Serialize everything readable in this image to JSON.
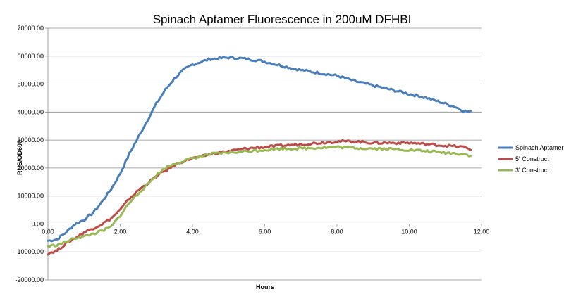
{
  "chart_data": {
    "type": "line",
    "title": "Spinach Aptamer Fluorescence in 200uM DFHBI",
    "xlabel": "Hours",
    "ylabel": "RUS/OD600",
    "xlim": [
      0,
      12
    ],
    "ylim": [
      -20000,
      70000
    ],
    "x_ticks": [
      "0.00",
      "2.00",
      "4.00",
      "6.00",
      "8.00",
      "10.00",
      "12.00"
    ],
    "y_ticks": [
      "-20000.00",
      "-10000.00",
      "0.00",
      "10000.00",
      "20000.00",
      "30000.00",
      "40000.00",
      "50000.00",
      "60000.00",
      "70000.00"
    ],
    "grid": "horizontal",
    "legend_position": "right",
    "series": [
      {
        "name": "Spinach Aptamer",
        "color": "#4a7ebb",
        "x": [
          0.0,
          0.25,
          0.5,
          0.75,
          1.0,
          1.25,
          1.5,
          1.75,
          2.0,
          2.25,
          2.5,
          2.75,
          3.0,
          3.25,
          3.5,
          3.75,
          4.0,
          4.25,
          4.5,
          4.75,
          5.0,
          5.25,
          5.5,
          5.75,
          6.0,
          6.5,
          7.0,
          7.5,
          8.0,
          8.5,
          9.0,
          9.5,
          10.0,
          10.5,
          11.0,
          11.25,
          11.5,
          11.7
        ],
        "y": [
          -6000,
          -5500,
          -3000,
          0,
          1500,
          4000,
          8000,
          12500,
          18000,
          25000,
          31000,
          37000,
          43000,
          48000,
          52000,
          55000,
          57000,
          58000,
          59000,
          59200,
          59500,
          59300,
          59000,
          58600,
          58000,
          56500,
          55000,
          54000,
          53000,
          51000,
          49500,
          48000,
          46500,
          45000,
          43000,
          42000,
          40500,
          40000
        ]
      },
      {
        "name": "5' Construct",
        "color": "#be4b48",
        "x": [
          0.0,
          0.25,
          0.5,
          0.75,
          1.0,
          1.25,
          1.5,
          1.75,
          2.0,
          2.25,
          2.5,
          2.75,
          3.0,
          3.25,
          3.5,
          3.75,
          4.0,
          4.25,
          4.5,
          4.75,
          5.0,
          5.5,
          6.0,
          6.5,
          7.0,
          7.5,
          8.0,
          8.5,
          9.0,
          9.5,
          10.0,
          10.5,
          11.0,
          11.5,
          11.7
        ],
        "y": [
          -10500,
          -9500,
          -7000,
          -5000,
          -3000,
          -1500,
          0,
          2000,
          5000,
          9000,
          12000,
          14500,
          17000,
          19000,
          21000,
          22500,
          23500,
          24000,
          25000,
          25500,
          26000,
          27000,
          27500,
          28000,
          28500,
          29000,
          29500,
          29500,
          29000,
          29000,
          29000,
          28500,
          28000,
          27500,
          26800
        ]
      },
      {
        "name": "3' Construct",
        "color": "#98b954",
        "x": [
          0.0,
          0.25,
          0.5,
          0.75,
          1.0,
          1.25,
          1.5,
          1.75,
          2.0,
          2.25,
          2.5,
          2.75,
          3.0,
          3.25,
          3.5,
          3.75,
          4.0,
          4.25,
          4.5,
          4.75,
          5.0,
          5.5,
          6.0,
          6.5,
          7.0,
          7.5,
          8.0,
          8.5,
          9.0,
          9.5,
          10.0,
          10.5,
          11.0,
          11.5,
          11.7
        ],
        "y": [
          -8000,
          -7500,
          -6500,
          -5000,
          -4500,
          -3500,
          -2500,
          -1000,
          3000,
          7500,
          11000,
          14000,
          17500,
          20000,
          21500,
          22500,
          23500,
          24200,
          25000,
          25200,
          25500,
          26000,
          26500,
          27000,
          27000,
          27300,
          27500,
          27200,
          27000,
          26800,
          26500,
          26000,
          25500,
          25000,
          24500
        ]
      }
    ]
  }
}
